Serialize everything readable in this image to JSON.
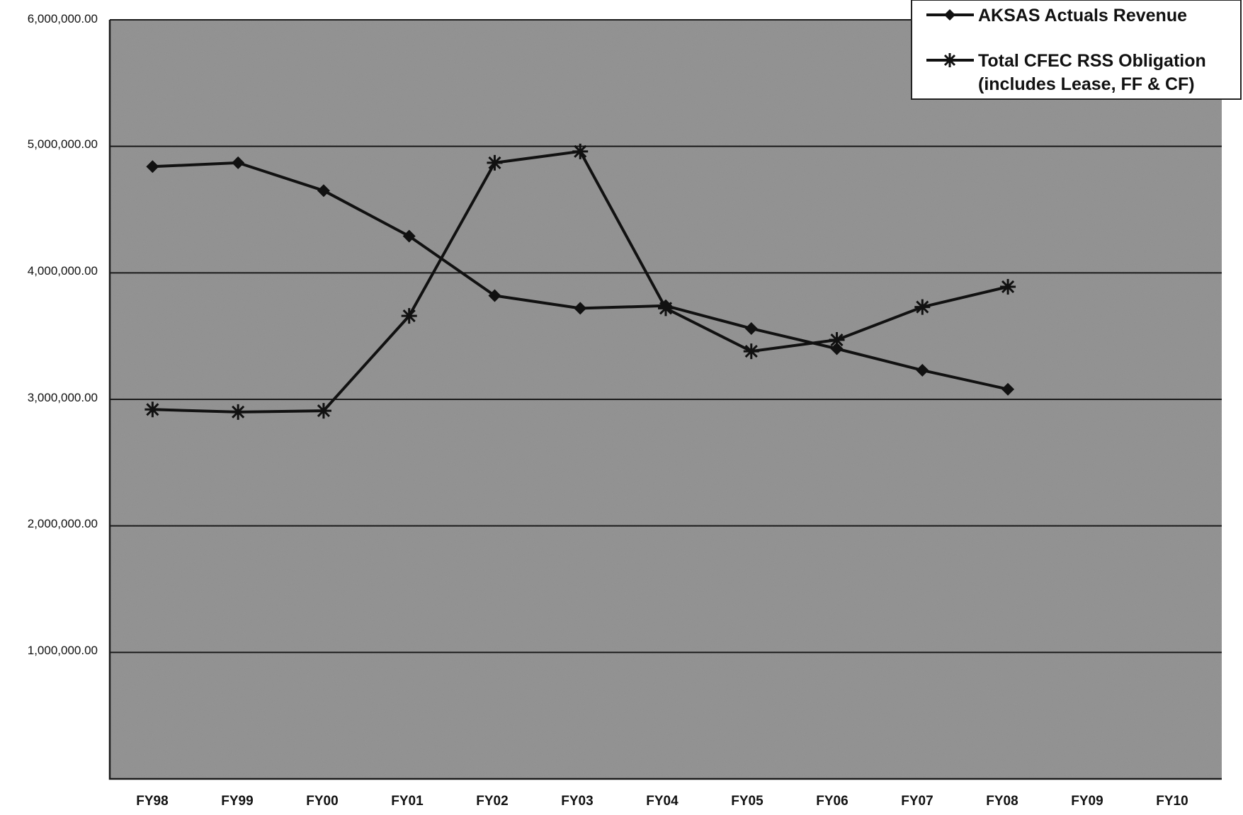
{
  "chart_data": {
    "type": "line",
    "title": "",
    "xlabel": "",
    "ylabel": "",
    "categories": [
      "FY98",
      "FY99",
      "FY00",
      "FY01",
      "FY02",
      "FY03",
      "FY04",
      "FY05",
      "FY06",
      "FY07",
      "FY08",
      "FY09",
      "FY10"
    ],
    "ylim": [
      0,
      6000000
    ],
    "y_ticks": [
      1000000,
      2000000,
      3000000,
      4000000,
      5000000,
      6000000
    ],
    "y_tick_labels": [
      "1,000,000.00",
      "2,000,000.00",
      "3,000,000.00",
      "4,000,000.00",
      "5,000,000.00",
      "6,000,000.00"
    ],
    "grid": "horizontal",
    "legend_position": "top-right",
    "plot_background": "#8f8f8f",
    "series": [
      {
        "name": "AKSAS Actuals Revenue",
        "marker": "diamond",
        "color": "#111111",
        "values": [
          4840000,
          4870000,
          4650000,
          4290000,
          3820000,
          3720000,
          3740000,
          3560000,
          3400000,
          3230000,
          3080000,
          null,
          null
        ]
      },
      {
        "name": "Total CFEC RSS Obligation",
        "name_line2": "(includes Lease, FF & CF)",
        "marker": "star",
        "color": "#111111",
        "values": [
          2920000,
          2900000,
          2910000,
          3660000,
          4870000,
          4960000,
          3720000,
          3380000,
          3470000,
          3730000,
          3890000,
          null,
          null
        ]
      }
    ]
  }
}
